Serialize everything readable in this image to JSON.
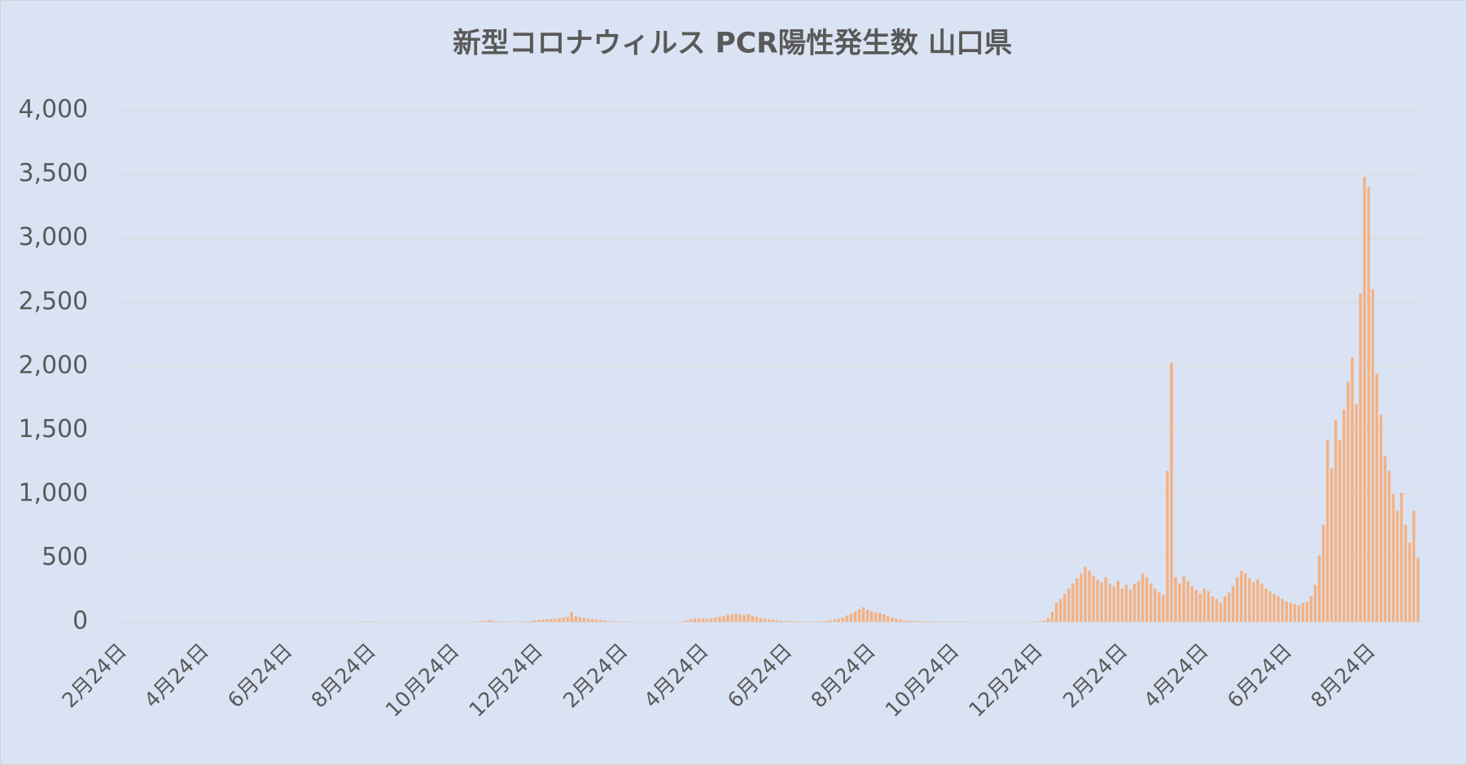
{
  "chart_data": {
    "type": "bar",
    "title": "新型コロナウィルス PCR陽性発生数 山口県",
    "color": "#f4b183",
    "grid": true,
    "xlim": [
      0,
      951
    ],
    "xticks": [
      {
        "value": 0,
        "label": "2月24日"
      },
      {
        "value": 60,
        "label": "4月24日"
      },
      {
        "value": 121,
        "label": "6月24日"
      },
      {
        "value": 182,
        "label": "8月24日"
      },
      {
        "value": 243,
        "label": "10月24日"
      },
      {
        "value": 304,
        "label": "12月24日"
      },
      {
        "value": 366,
        "label": "2月24日"
      },
      {
        "value": 425,
        "label": "4月24日"
      },
      {
        "value": 486,
        "label": "6月24日"
      },
      {
        "value": 547,
        "label": "8月24日"
      },
      {
        "value": 608,
        "label": "10月24日"
      },
      {
        "value": 669,
        "label": "12月24日"
      },
      {
        "value": 731,
        "label": "2月24日"
      },
      {
        "value": 790,
        "label": "4月24日"
      },
      {
        "value": 851,
        "label": "6月24日"
      },
      {
        "value": 912,
        "label": "8月24日"
      }
    ],
    "ylim": [
      0,
      4000
    ],
    "yticks": [
      0,
      500,
      {
        "value": 1000,
        "label": "1,000"
      },
      {
        "value": 1500,
        "label": "1,500"
      },
      {
        "value": 2000,
        "label": "2,000"
      },
      {
        "value": 2500,
        "label": "2,500"
      },
      {
        "value": 3000,
        "label": "3,000"
      },
      {
        "value": 3500,
        "label": "3,500"
      },
      {
        "value": 4000,
        "label": "4,000"
      }
    ],
    "x": [
      0,
      3,
      6,
      9,
      12,
      15,
      18,
      21,
      24,
      27,
      30,
      33,
      36,
      39,
      42,
      45,
      48,
      51,
      54,
      57,
      60,
      63,
      66,
      69,
      72,
      75,
      78,
      81,
      84,
      87,
      90,
      93,
      96,
      99,
      102,
      105,
      108,
      111,
      114,
      117,
      120,
      123,
      126,
      129,
      132,
      135,
      138,
      141,
      144,
      147,
      150,
      153,
      156,
      159,
      162,
      165,
      168,
      171,
      174,
      177,
      180,
      183,
      186,
      189,
      192,
      195,
      198,
      201,
      204,
      207,
      210,
      213,
      216,
      219,
      222,
      225,
      228,
      231,
      234,
      237,
      240,
      243,
      246,
      249,
      252,
      255,
      258,
      261,
      264,
      267,
      270,
      273,
      276,
      279,
      282,
      285,
      288,
      291,
      294,
      297,
      300,
      303,
      306,
      309,
      312,
      315,
      318,
      321,
      324,
      327,
      330,
      333,
      336,
      339,
      342,
      345,
      348,
      351,
      354,
      357,
      360,
      363,
      366,
      369,
      372,
      375,
      378,
      381,
      384,
      387,
      390,
      393,
      396,
      399,
      402,
      405,
      408,
      411,
      414,
      417,
      420,
      423,
      426,
      429,
      432,
      435,
      438,
      441,
      444,
      447,
      450,
      453,
      456,
      459,
      462,
      465,
      468,
      471,
      474,
      477,
      480,
      483,
      486,
      489,
      492,
      495,
      498,
      501,
      504,
      507,
      510,
      513,
      516,
      519,
      522,
      525,
      528,
      531,
      534,
      537,
      540,
      543,
      546,
      549,
      552,
      555,
      558,
      561,
      564,
      567,
      570,
      573,
      576,
      579,
      582,
      585,
      588,
      591,
      594,
      597,
      600,
      603,
      606,
      609,
      612,
      615,
      618,
      621,
      624,
      627,
      630,
      633,
      636,
      639,
      642,
      645,
      648,
      651,
      654,
      657,
      660,
      663,
      666,
      669,
      672,
      675,
      678,
      681,
      684,
      687,
      690,
      693,
      696,
      699,
      702,
      705,
      708,
      711,
      714,
      717,
      720,
      723,
      726,
      729,
      732,
      735,
      738,
      741,
      744,
      747,
      750,
      753,
      756,
      759,
      762,
      765,
      768,
      771,
      774,
      777,
      780,
      783,
      786,
      789,
      792,
      795,
      798,
      801,
      804,
      807,
      810,
      813,
      816,
      819,
      822,
      825,
      828,
      831,
      834,
      837,
      840,
      843,
      846,
      849,
      852,
      855,
      858,
      861,
      864,
      867,
      870,
      873,
      876,
      879,
      882,
      885,
      888,
      891,
      894,
      897,
      900,
      903,
      906,
      909,
      912,
      915,
      918,
      921,
      924,
      927,
      930,
      933,
      936,
      939,
      942,
      945,
      948
    ],
    "values": [
      0,
      0,
      0,
      0,
      0,
      0,
      0,
      0,
      0,
      0,
      0,
      0,
      0,
      0,
      0,
      0,
      0,
      0,
      0,
      0,
      0,
      0,
      0,
      0,
      0,
      0,
      0,
      0,
      0,
      0,
      0,
      0,
      0,
      0,
      0,
      0,
      0,
      0,
      0,
      0,
      0,
      0,
      0,
      0,
      0,
      0,
      0,
      0,
      0,
      0,
      0,
      0,
      0,
      0,
      0,
      0,
      0,
      0,
      0,
      1,
      2,
      3,
      2,
      1,
      0,
      0,
      0,
      0,
      0,
      0,
      0,
      0,
      0,
      0,
      0,
      0,
      0,
      0,
      0,
      0,
      0,
      0,
      0,
      0,
      0,
      0,
      0,
      2,
      5,
      10,
      15,
      8,
      4,
      2,
      1,
      1,
      0,
      2,
      3,
      5,
      8,
      12,
      15,
      18,
      20,
      25,
      22,
      30,
      35,
      40,
      80,
      45,
      38,
      30,
      25,
      20,
      18,
      15,
      12,
      8,
      5,
      3,
      2,
      1,
      1,
      0,
      0,
      0,
      0,
      0,
      0,
      0,
      0,
      0,
      0,
      0,
      0,
      5,
      12,
      20,
      28,
      30,
      25,
      22,
      30,
      35,
      40,
      45,
      55,
      60,
      62,
      58,
      55,
      60,
      50,
      40,
      30,
      25,
      20,
      15,
      12,
      10,
      8,
      6,
      4,
      3,
      2,
      1,
      1,
      2,
      3,
      5,
      8,
      12,
      18,
      25,
      35,
      50,
      65,
      80,
      100,
      115,
      95,
      85,
      75,
      70,
      60,
      45,
      35,
      25,
      18,
      12,
      10,
      8,
      6,
      5,
      4,
      3,
      3,
      2,
      2,
      2,
      1,
      1,
      1,
      1,
      1,
      0,
      0,
      0,
      0,
      0,
      0,
      0,
      0,
      0,
      0,
      0,
      0,
      0,
      0,
      0,
      1,
      2,
      5,
      10,
      30,
      80,
      150,
      180,
      220,
      260,
      300,
      340,
      380,
      430,
      400,
      360,
      330,
      310,
      350,
      300,
      280,
      320,
      260,
      290,
      250,
      300,
      320,
      380,
      350,
      300,
      260,
      230,
      210,
      1180,
      2030,
      350,
      300,
      360,
      320,
      280,
      250,
      220,
      260,
      240,
      200,
      180,
      150,
      200,
      230,
      280,
      350,
      400,
      380,
      340,
      310,
      330,
      300,
      260,
      240,
      220,
      200,
      180,
      160,
      150,
      140,
      130,
      150,
      160,
      200,
      290,
      520,
      760,
      1420,
      1200,
      1580,
      1420,
      1660,
      1880,
      2070,
      1700,
      2570,
      3480,
      3400,
      2600,
      1940,
      1620,
      1300,
      1180,
      1000,
      870,
      1010,
      760,
      620,
      870,
      500
    ]
  }
}
